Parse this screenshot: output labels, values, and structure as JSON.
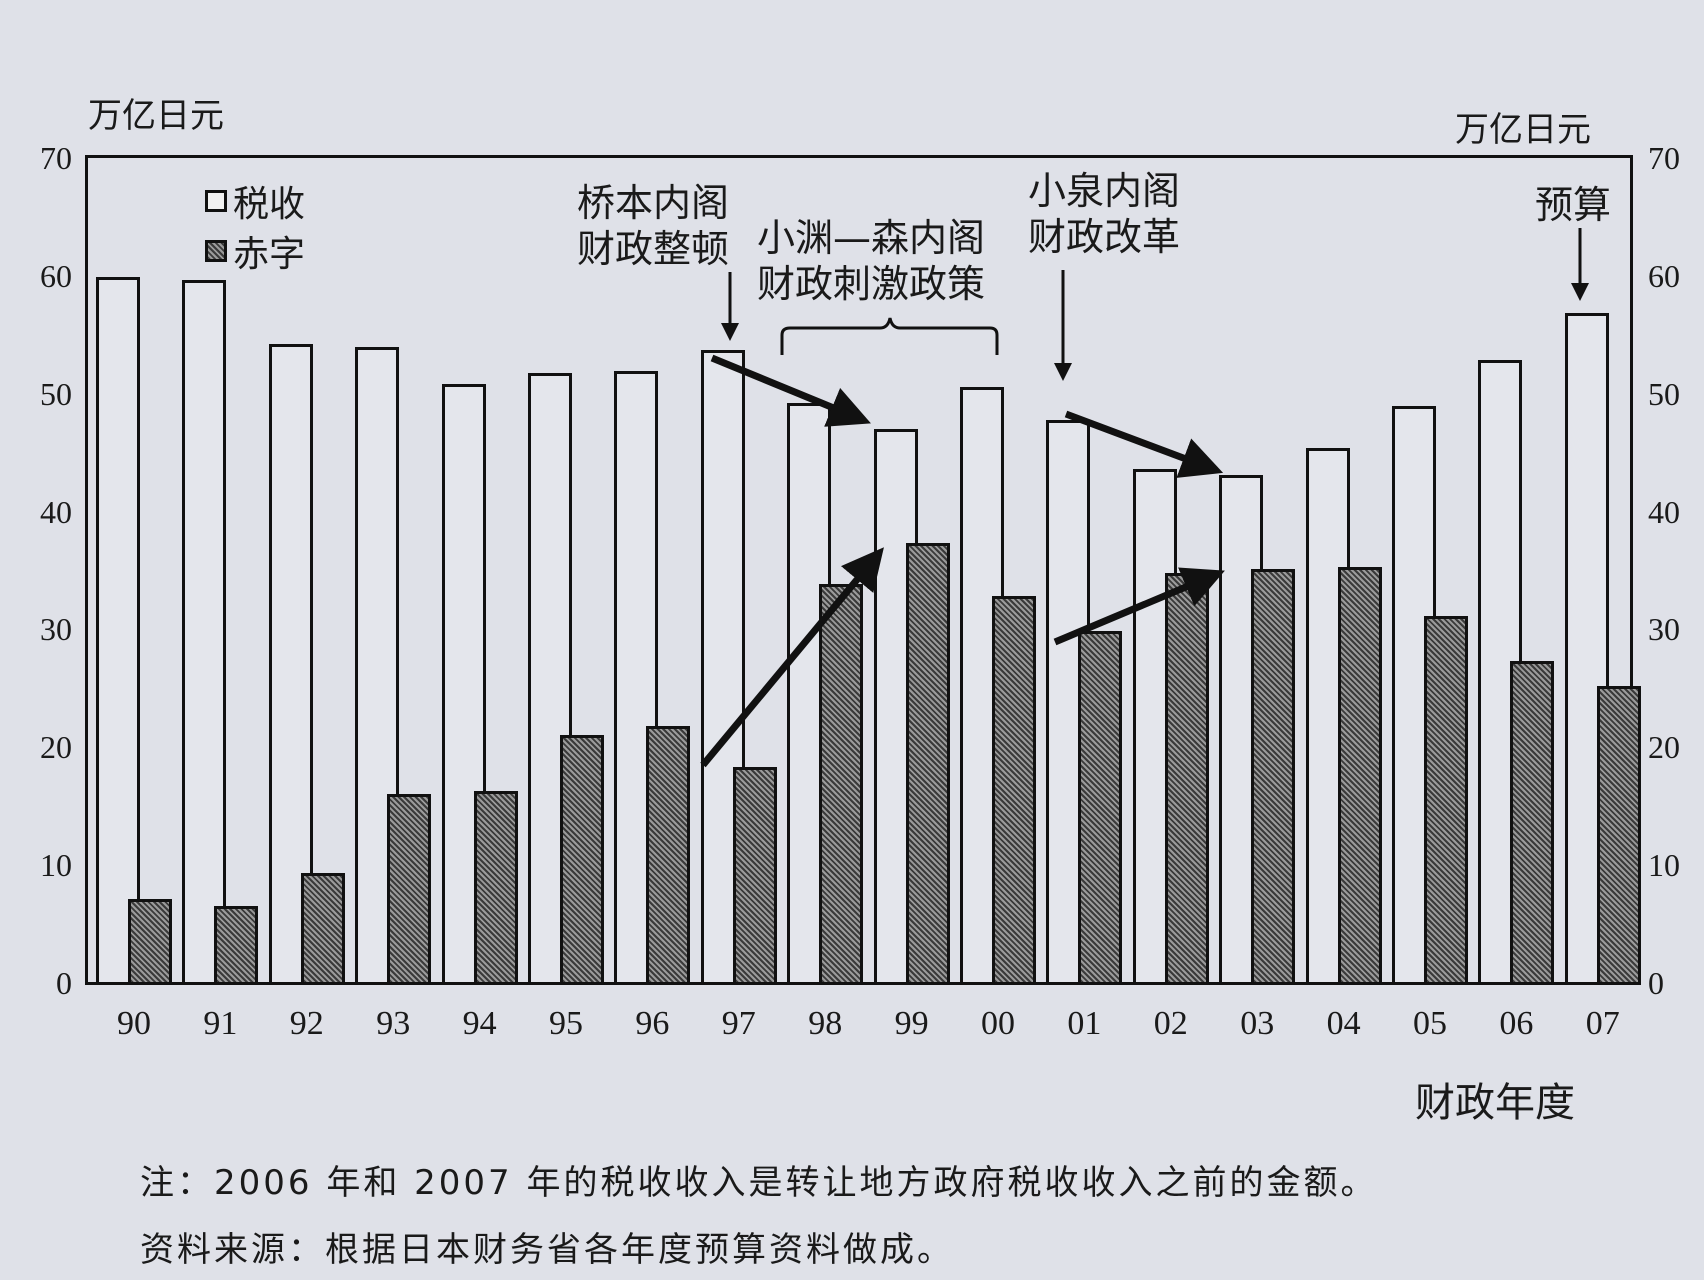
{
  "chart_data": {
    "type": "bar",
    "title": "",
    "xlabel": "财政年度",
    "ylabel_left": "万亿日元",
    "ylabel_right": "万亿日元",
    "ylim": [
      0,
      70
    ],
    "yticks": [
      0,
      10,
      20,
      30,
      40,
      50,
      60,
      70
    ],
    "grid": false,
    "legend_position": "top-left",
    "categories": [
      "90",
      "91",
      "92",
      "93",
      "94",
      "95",
      "96",
      "97",
      "98",
      "99",
      "00",
      "01",
      "02",
      "03",
      "04",
      "05",
      "06",
      "07"
    ],
    "series": [
      {
        "name": "税收",
        "style": "white",
        "values": [
          60.1,
          59.8,
          54.4,
          54.1,
          51.0,
          51.9,
          52.1,
          53.9,
          49.4,
          47.2,
          50.7,
          47.9,
          43.8,
          43.3,
          45.6,
          49.1,
          53.0,
          57.0
        ]
      },
      {
        "name": "赤字",
        "style": "hatched",
        "values": [
          7.3,
          6.7,
          9.5,
          16.2,
          16.5,
          21.2,
          22.0,
          18.5,
          34.0,
          37.5,
          33.0,
          30.0,
          35.0,
          35.3,
          35.5,
          31.3,
          27.5,
          25.4
        ]
      }
    ],
    "annotations": [
      {
        "text": "桥本内阁\n财政整顿",
        "target": "97"
      },
      {
        "text": "小渊—森内阁\n财政刺激政策",
        "target": "98-00"
      },
      {
        "text": "小泉内阁\n财政改革",
        "target": "01"
      },
      {
        "text": "预算",
        "target": "07"
      }
    ]
  },
  "axis": {
    "left_unit": "万亿日元",
    "right_unit": "万亿日元",
    "xlabel": "财政年度",
    "ticks": [
      "0",
      "10",
      "20",
      "30",
      "40",
      "50",
      "60",
      "70"
    ]
  },
  "legend": {
    "tax": "税收",
    "deficit": "赤字"
  },
  "annotations": {
    "hashimoto_1": "桥本内阁",
    "hashimoto_2": "财政整顿",
    "obuchi_1": "小渊—森内阁",
    "obuchi_2": "财政刺激政策",
    "koizumi_1": "小泉内阁",
    "koizumi_2": "财政改革",
    "budget": "预算"
  },
  "notes": {
    "note": "注：2006 年和 2007 年的税收收入是转让地方政府税收收入之前的金额。",
    "source": "资料来源：根据日本财务省各年度预算资料做成。"
  }
}
